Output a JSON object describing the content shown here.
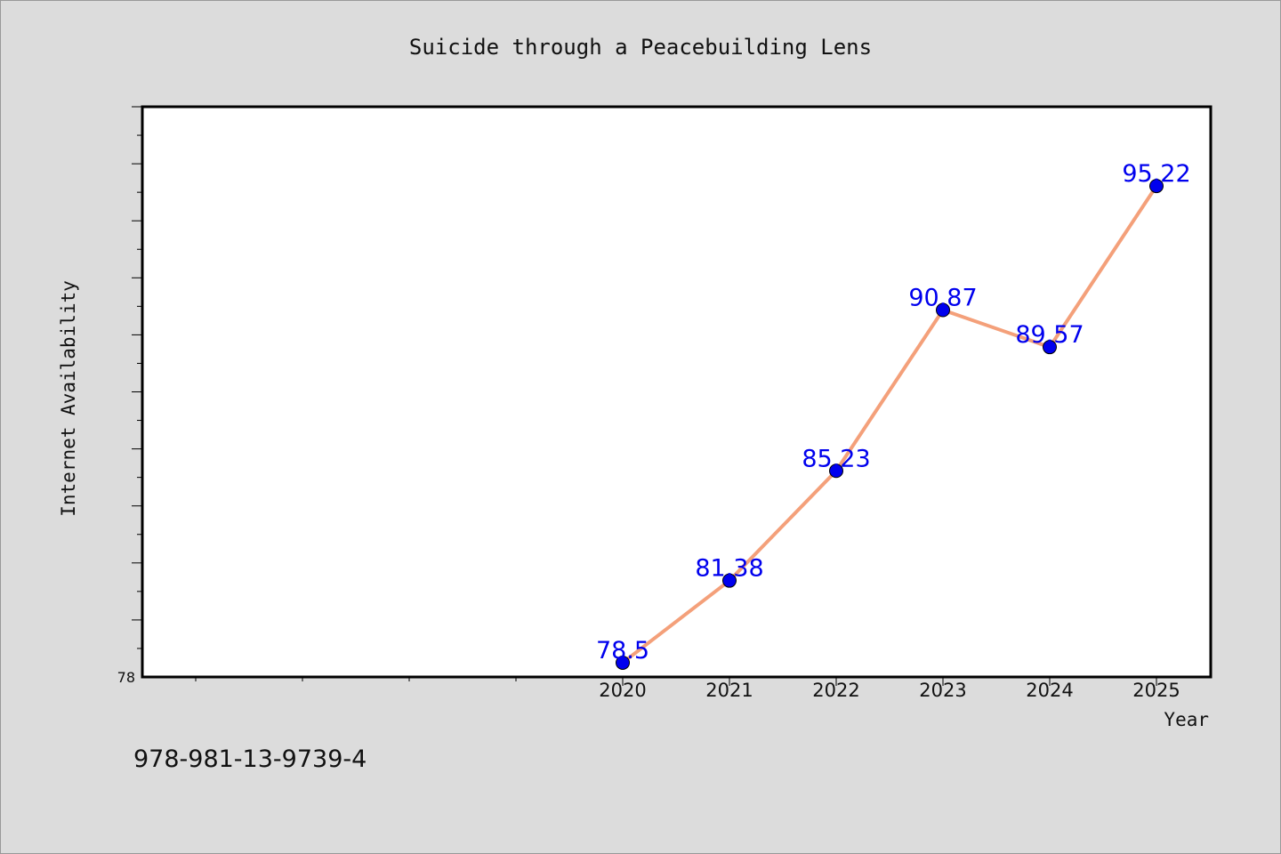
{
  "chart_data": {
    "type": "line",
    "title": "Suicide through a Peacebuilding Lens",
    "xlabel": "Year",
    "ylabel": "Internet Availability",
    "x": [
      "2020",
      "2021",
      "2022",
      "2023",
      "2024",
      "2025"
    ],
    "series": [
      {
        "values": [
          78.5,
          81.38,
          85.23,
          90.87,
          89.57,
          95.22
        ],
        "data_labels": [
          "78.5",
          "81.38",
          "85.23",
          "90.87",
          "89.57",
          "95.22"
        ],
        "line_color": "#f4a07a",
        "marker_color": "#0000ee"
      }
    ],
    "y_ticks_labeled": [
      "78"
    ],
    "ylim": [
      78,
      98
    ],
    "grid": false,
    "legend": "none"
  },
  "footer": {
    "isbn": "978-981-13-9739-4"
  }
}
